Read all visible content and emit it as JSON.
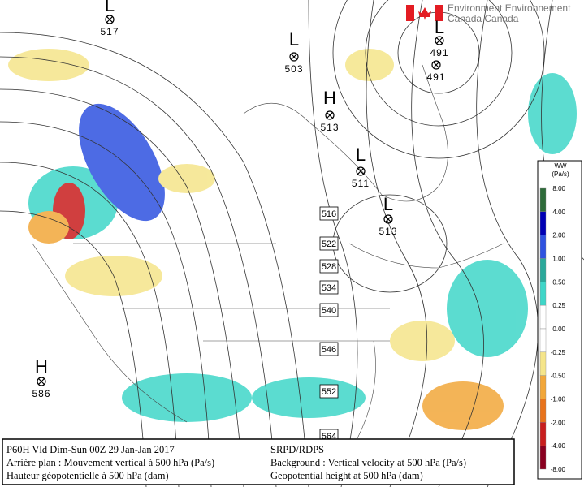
{
  "header": {
    "logo_line1": "Environment Environnement",
    "logo_line2": "Canada Canada"
  },
  "pressure_centers": [
    {
      "letter": "L",
      "value": "517"
    },
    {
      "letter": "L",
      "value": "503"
    },
    {
      "letter": "L",
      "value": "491"
    },
    {
      "letter": "H",
      "value": "513"
    },
    {
      "letter": "L",
      "value": "511"
    },
    {
      "letter": "L",
      "value": "513"
    },
    {
      "letter": "H",
      "value": "586"
    }
  ],
  "extra_center_values": [
    "491"
  ],
  "contour_labels": [
    "516",
    "522",
    "528",
    "534",
    "540",
    "546",
    "552",
    "564"
  ],
  "legend": {
    "title": "WW",
    "unit": "(Pa/s)",
    "labels": [
      "8.00",
      "4.00",
      "2.00",
      "1.00",
      "0.50",
      "0.25",
      "0.00",
      "-0.25",
      "-0.50",
      "-1.00",
      "-2.00",
      "-4.00",
      "-8.00"
    ],
    "colors": [
      "#2e6b3a",
      "#0000b4",
      "#2f52e0",
      "#2aa89a",
      "#3fd6c8",
      "#ffffff",
      "#ffffff",
      "#f5e58a",
      "#f2a73a",
      "#e8731c",
      "#c81e1e",
      "#8a0020"
    ]
  },
  "caption": {
    "left": [
      "P60H Vld Dim-Sun 00Z 29 Jan-Jan 2017",
      "Arrière plan : Mouvement vertical à 500 hPa (Pa/s)",
      "Hauteur géopotentielle à 500 hPa (dam)"
    ],
    "right": [
      "SRPD/RDPS",
      "Background : Vertical velocity at 500 hPa (Pa/s)",
      "Geopotential height at 500 hPa (dam)"
    ]
  }
}
